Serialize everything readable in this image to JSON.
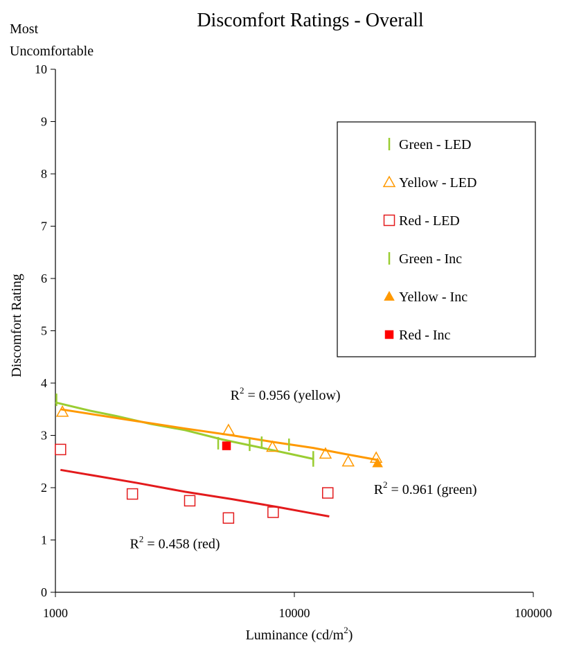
{
  "chart_data": {
    "type": "scatter",
    "title": "Discomfort Ratings - Overall",
    "y_top_note": [
      "Most",
      "Uncomfortable"
    ],
    "ylabel": "Discomfort Rating",
    "xlabel_main": "Luminance (cd/m",
    "xlabel_sup": "2",
    "xlabel_tail": ")",
    "xscale": "log",
    "xlim": [
      1000,
      100000
    ],
    "ylim": [
      0,
      10
    ],
    "x_ticks": [
      1000,
      10000,
      100000
    ],
    "x_tick_labels": [
      "1000",
      "10000",
      "100000"
    ],
    "y_ticks": [
      0,
      1,
      2,
      3,
      4,
      5,
      6,
      7,
      8,
      9,
      10
    ],
    "y_tick_labels": [
      "0",
      "1",
      "2",
      "3",
      "4",
      "5",
      "6",
      "7",
      "8",
      "9",
      "10"
    ],
    "legend_position": "right",
    "series": [
      {
        "name": "Green - LED",
        "marker": "dash",
        "color": "#9acd32",
        "filled": false,
        "points": [
          [
            1010,
            3.68
          ],
          [
            4800,
            2.85
          ],
          [
            6500,
            2.82
          ],
          [
            7300,
            2.86
          ],
          [
            9500,
            2.82
          ],
          [
            12000,
            2.58
          ]
        ]
      },
      {
        "name": "Yellow - LED",
        "marker": "triangle",
        "color": "#ff9900",
        "filled": false,
        "points": [
          [
            1070,
            3.45
          ],
          [
            5300,
            3.1
          ],
          [
            8100,
            2.78
          ],
          [
            13500,
            2.65
          ],
          [
            16800,
            2.5
          ],
          [
            22000,
            2.57
          ]
        ]
      },
      {
        "name": "Red - LED",
        "marker": "square",
        "color": "#e31a1c",
        "filled": false,
        "points": [
          [
            1050,
            2.73
          ],
          [
            2100,
            1.88
          ],
          [
            3650,
            1.75
          ],
          [
            5300,
            1.42
          ],
          [
            8150,
            1.53
          ],
          [
            13800,
            1.9
          ]
        ]
      },
      {
        "name": "Green - Inc",
        "marker": "dash",
        "color": "#9acd32",
        "filled": true,
        "points": [
          [
            12000,
            2.52
          ]
        ]
      },
      {
        "name": "Yellow - Inc",
        "marker": "triangle",
        "color": "#ff9900",
        "filled": true,
        "points": [
          [
            22300,
            2.47
          ]
        ]
      },
      {
        "name": "Red - Inc",
        "marker": "square",
        "color": "#ff0000",
        "filled": true,
        "points": [
          [
            5200,
            2.8
          ]
        ]
      }
    ],
    "trendlines": [
      {
        "series": "green",
        "color": "#9acd32",
        "points": [
          [
            1000,
            3.63
          ],
          [
            1400,
            3.47
          ],
          [
            1800,
            3.37
          ],
          [
            2500,
            3.22
          ],
          [
            3500,
            3.1
          ],
          [
            5000,
            2.92
          ],
          [
            7000,
            2.78
          ],
          [
            9500,
            2.65
          ],
          [
            12000,
            2.55
          ]
        ]
      },
      {
        "series": "yellow",
        "color": "#ff9900",
        "points": [
          [
            1050,
            3.5
          ],
          [
            2000,
            3.3
          ],
          [
            3500,
            3.13
          ],
          [
            5500,
            3.0
          ],
          [
            8000,
            2.88
          ],
          [
            12000,
            2.76
          ],
          [
            16000,
            2.65
          ],
          [
            22300,
            2.53
          ]
        ]
      },
      {
        "series": "red",
        "color": "#e31a1c",
        "points": [
          [
            1050,
            2.34
          ],
          [
            1500,
            2.22
          ],
          [
            2200,
            2.09
          ],
          [
            3500,
            1.92
          ],
          [
            5500,
            1.78
          ],
          [
            8500,
            1.63
          ],
          [
            11500,
            1.52
          ],
          [
            14000,
            1.45
          ]
        ]
      }
    ],
    "annotations": [
      {
        "prefix": "R",
        "sup": "2",
        "text": " = 0.956 (yellow)",
        "x": 5400,
        "y": 3.68
      },
      {
        "prefix": "R",
        "sup": "2",
        "text": " = 0.961 (green)",
        "x": 21500,
        "y": 1.88
      },
      {
        "prefix": "R",
        "sup": "2",
        "text": " = 0.458 (red)",
        "x": 2050,
        "y": 0.84
      }
    ]
  }
}
